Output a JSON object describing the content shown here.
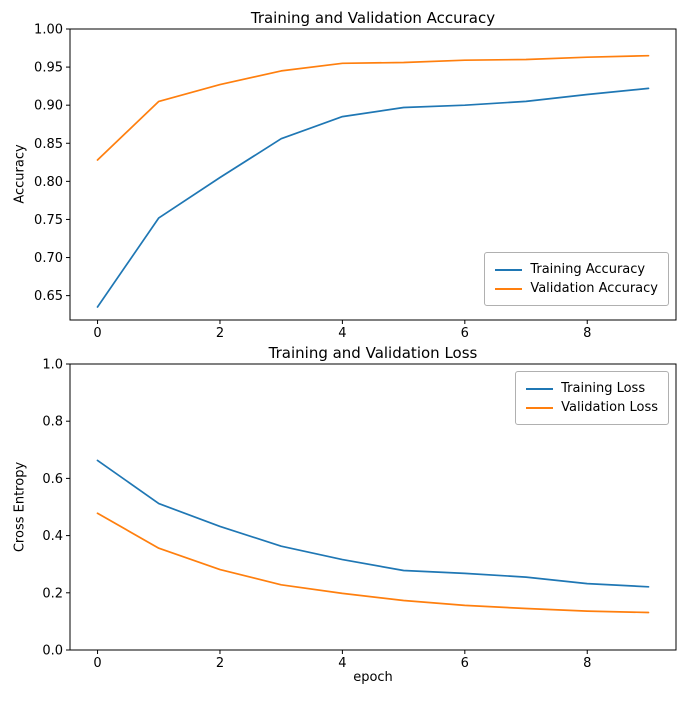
{
  "figure": {
    "background": "#ffffff"
  },
  "chart_data": [
    {
      "type": "line",
      "title": "Training and Validation Accuracy",
      "xlabel": "",
      "ylabel": "Accuracy",
      "grid": false,
      "legend_position": "lower right",
      "x": [
        0,
        1,
        2,
        3,
        4,
        5,
        6,
        7,
        8,
        9
      ],
      "xlim": [
        -0.45,
        9.45
      ],
      "ylim": [
        0.618,
        1.0
      ],
      "xticks": [
        0,
        2,
        4,
        6,
        8
      ],
      "xtick_labels": [
        "0",
        "2",
        "4",
        "6",
        "8"
      ],
      "yticks": [
        0.65,
        0.7,
        0.75,
        0.8,
        0.85,
        0.9,
        0.95,
        1.0
      ],
      "ytick_labels": [
        "0.65",
        "0.70",
        "0.75",
        "0.80",
        "0.85",
        "0.90",
        "0.95",
        "1.00"
      ],
      "series": [
        {
          "name": "Training Accuracy",
          "color": "#1f77b4",
          "values": [
            0.635,
            0.752,
            0.805,
            0.856,
            0.885,
            0.897,
            0.9,
            0.905,
            0.914,
            0.922
          ]
        },
        {
          "name": "Validation Accuracy",
          "color": "#ff7f0e",
          "values": [
            0.828,
            0.905,
            0.927,
            0.945,
            0.955,
            0.956,
            0.959,
            0.96,
            0.963,
            0.965
          ]
        }
      ]
    },
    {
      "type": "line",
      "title": "Training and Validation Loss",
      "xlabel": "epoch",
      "ylabel": "Cross Entropy",
      "grid": false,
      "legend_position": "upper right",
      "x": [
        0,
        1,
        2,
        3,
        4,
        5,
        6,
        7,
        8,
        9
      ],
      "xlim": [
        -0.45,
        9.45
      ],
      "ylim": [
        0.0,
        1.0
      ],
      "xticks": [
        0,
        2,
        4,
        6,
        8
      ],
      "xtick_labels": [
        "0",
        "2",
        "4",
        "6",
        "8"
      ],
      "yticks": [
        0.0,
        0.2,
        0.4,
        0.6,
        0.8,
        1.0
      ],
      "ytick_labels": [
        "0.0",
        "0.2",
        "0.4",
        "0.6",
        "0.8",
        "1.0"
      ],
      "series": [
        {
          "name": "Training Loss",
          "color": "#1f77b4",
          "values": [
            0.663,
            0.512,
            0.432,
            0.363,
            0.316,
            0.278,
            0.268,
            0.255,
            0.232,
            0.221
          ]
        },
        {
          "name": "Validation Loss",
          "color": "#ff7f0e",
          "values": [
            0.478,
            0.356,
            0.281,
            0.228,
            0.198,
            0.173,
            0.156,
            0.145,
            0.136,
            0.131
          ]
        }
      ]
    }
  ]
}
